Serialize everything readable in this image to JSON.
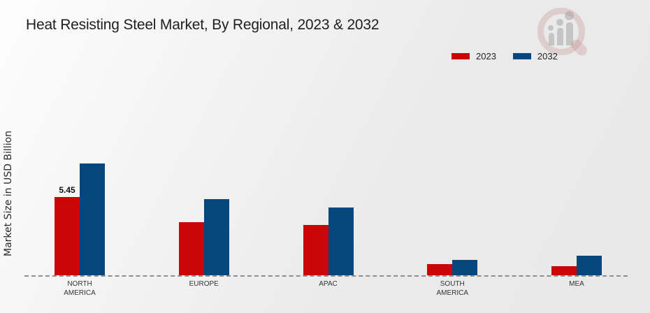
{
  "title": "Heat Resisting Steel Market, By Regional, 2023 & 2032",
  "y_axis_label": "Market Size in USD Billion",
  "legend": [
    {
      "label": "2023",
      "color": "#c90707"
    },
    {
      "label": "2032",
      "color": "#05477d"
    }
  ],
  "colors": {
    "series_2023": "#c90707",
    "series_2032": "#05477d",
    "baseline": "#8e8e8e",
    "title_text": "#1e1e1e"
  },
  "watermark_icon": "magnifier-bar-chart-logo-icon",
  "chart_data": {
    "type": "bar",
    "title": "Heat Resisting Steel Market, By Regional, 2023 & 2032",
    "xlabel": "",
    "ylabel": "Market Size in USD Billion",
    "categories": [
      "NORTH AMERICA",
      "EUROPE",
      "APAC",
      "SOUTH AMERICA",
      "MEA"
    ],
    "series": [
      {
        "name": "2023",
        "color": "#c90707",
        "values": [
          5.45,
          3.7,
          3.5,
          0.8,
          0.65
        ]
      },
      {
        "name": "2032",
        "color": "#05477d",
        "values": [
          7.8,
          5.3,
          4.7,
          1.05,
          1.35
        ]
      }
    ],
    "data_labels": [
      {
        "series_index": 0,
        "category_index": 0,
        "text": "5.45"
      }
    ],
    "ylim": [
      0,
      9
    ],
    "grid": false,
    "baseline_style": "dashed",
    "legend_position": "top-right"
  }
}
